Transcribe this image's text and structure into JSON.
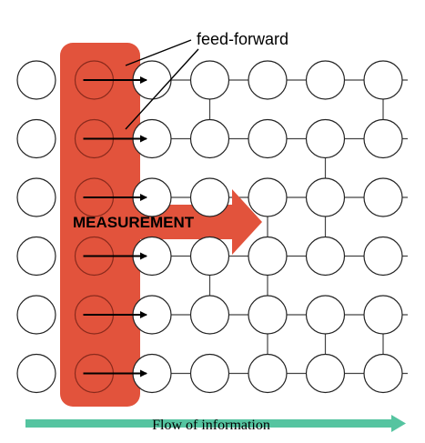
{
  "labels": {
    "feed_forward": "feed-forward",
    "measurement": "MEASUREMENT",
    "flow": "Flow of information"
  },
  "colors": {
    "measurement_region": "#e2533c",
    "flow_arrow": "#55c4a0",
    "node_stroke": "#222222",
    "edge": "#444444",
    "arrow": "#000000",
    "text": "#000000"
  },
  "grid": {
    "rows": 6,
    "columns": 7,
    "measured_columns": 2,
    "vertical_links": [
      {
        "column": 4,
        "between_rows": [
          1,
          2
        ]
      },
      {
        "column": 4,
        "between_rows": [
          4,
          5
        ]
      },
      {
        "column": 5,
        "between_rows": [
          3,
          4
        ]
      },
      {
        "column": 5,
        "between_rows": [
          4,
          5
        ]
      },
      {
        "column": 5,
        "between_rows": [
          5,
          6
        ]
      },
      {
        "column": 6,
        "between_rows": [
          2,
          3
        ]
      },
      {
        "column": 6,
        "between_rows": [
          3,
          4
        ]
      },
      {
        "column": 6,
        "between_rows": [
          5,
          6
        ]
      },
      {
        "column": 7,
        "between_rows": [
          1,
          2
        ]
      },
      {
        "column": 7,
        "between_rows": [
          5,
          6
        ]
      }
    ],
    "feed_forward_arrows_per_row": 1
  }
}
